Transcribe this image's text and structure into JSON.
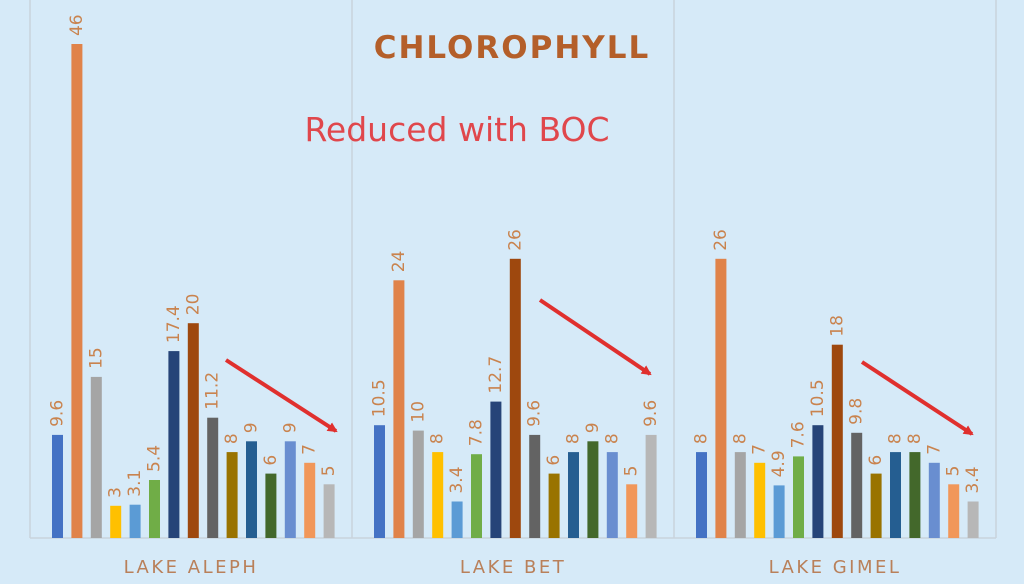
{
  "chart_data": {
    "type": "bar",
    "title": "CHLOROPHYLL",
    "annotation": "Reduced with BOC",
    "xlabel": "",
    "ylabel": "",
    "ylim": [
      0,
      50
    ],
    "grid": false,
    "legend": "none",
    "groups": [
      {
        "name": "LAKE ALEPH",
        "values": [
          9.6,
          46,
          15,
          3,
          3.1,
          5.4,
          17.4,
          20,
          11.2,
          8,
          9,
          6,
          9,
          7,
          5
        ],
        "labels": [
          "9.6",
          "46",
          "15",
          "3",
          "3.1",
          "5.4",
          "17.4",
          "20",
          "11.2",
          "8",
          "9",
          "6",
          "9",
          "7",
          "5"
        ]
      },
      {
        "name": "LAKE BET",
        "values": [
          10.5,
          24,
          10,
          8,
          3.4,
          7.8,
          12.7,
          26,
          9.6,
          6,
          8,
          9,
          8,
          5,
          9.6
        ],
        "labels": [
          "10.5",
          "24",
          "10",
          "8",
          "3.4",
          "7.8",
          "12.7",
          "26",
          "9.6",
          "6",
          "8",
          "9",
          "8",
          "5",
          "9.6"
        ]
      },
      {
        "name": "LAKE GIMEL",
        "values": [
          8,
          26,
          8,
          7,
          4.9,
          7.6,
          10.5,
          18,
          9.8,
          6,
          8,
          8,
          7,
          5,
          3.4
        ],
        "labels": [
          "8",
          "26",
          "8",
          "7",
          "4.9",
          "7.6",
          "10.5",
          "18",
          "9.8",
          "6",
          "8",
          "8",
          "7",
          "5",
          "3.4"
        ]
      }
    ],
    "series_colors": [
      "#4472c4",
      "#e0834a",
      "#a5a5a5",
      "#ffc000",
      "#5b9bd5",
      "#70ad47",
      "#264478",
      "#9e480e",
      "#636363",
      "#997300",
      "#255e91",
      "#43682b",
      "#698ed0",
      "#f1975a",
      "#b7b7b7"
    ]
  }
}
